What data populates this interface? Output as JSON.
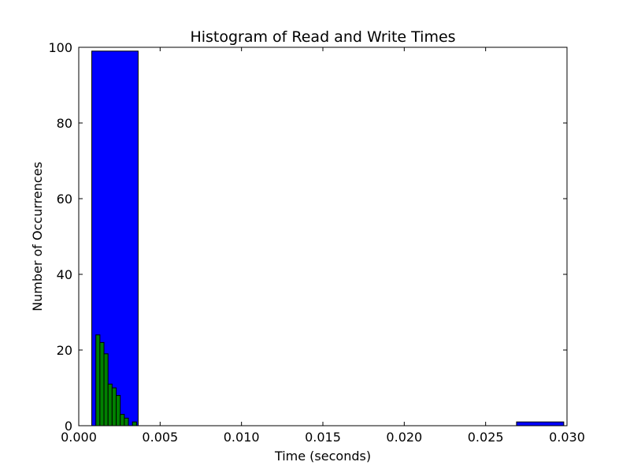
{
  "chart_data": {
    "type": "bar",
    "title": "Histogram of Read and Write Times",
    "xlabel": "Time (seconds)",
    "ylabel": "Number of Occurrences",
    "xlim": [
      0.0,
      0.03
    ],
    "ylim": [
      0,
      100
    ],
    "xticks": [
      "0.000",
      "0.005",
      "0.010",
      "0.015",
      "0.020",
      "0.025",
      "0.030"
    ],
    "yticks": [
      "0",
      "20",
      "40",
      "60",
      "80",
      "100"
    ],
    "grid": false,
    "series": [
      {
        "color": "#0000ff",
        "bins": [
          {
            "x0": 0.0008,
            "x1": 0.00365,
            "count": 99
          },
          {
            "x0": 0.0269,
            "x1": 0.0298,
            "count": 1
          }
        ]
      },
      {
        "color": "#008000",
        "bins": [
          {
            "x0": 0.00105,
            "x1": 0.0013,
            "count": 24
          },
          {
            "x0": 0.0013,
            "x1": 0.00155,
            "count": 22
          },
          {
            "x0": 0.00155,
            "x1": 0.0018,
            "count": 19
          },
          {
            "x0": 0.0018,
            "x1": 0.00205,
            "count": 11
          },
          {
            "x0": 0.00205,
            "x1": 0.0023,
            "count": 10
          },
          {
            "x0": 0.0023,
            "x1": 0.00255,
            "count": 8
          },
          {
            "x0": 0.00255,
            "x1": 0.0028,
            "count": 3
          },
          {
            "x0": 0.0028,
            "x1": 0.00305,
            "count": 2
          },
          {
            "x0": 0.00305,
            "x1": 0.0033,
            "count": 0
          },
          {
            "x0": 0.0033,
            "x1": 0.00355,
            "count": 1
          }
        ]
      }
    ]
  }
}
